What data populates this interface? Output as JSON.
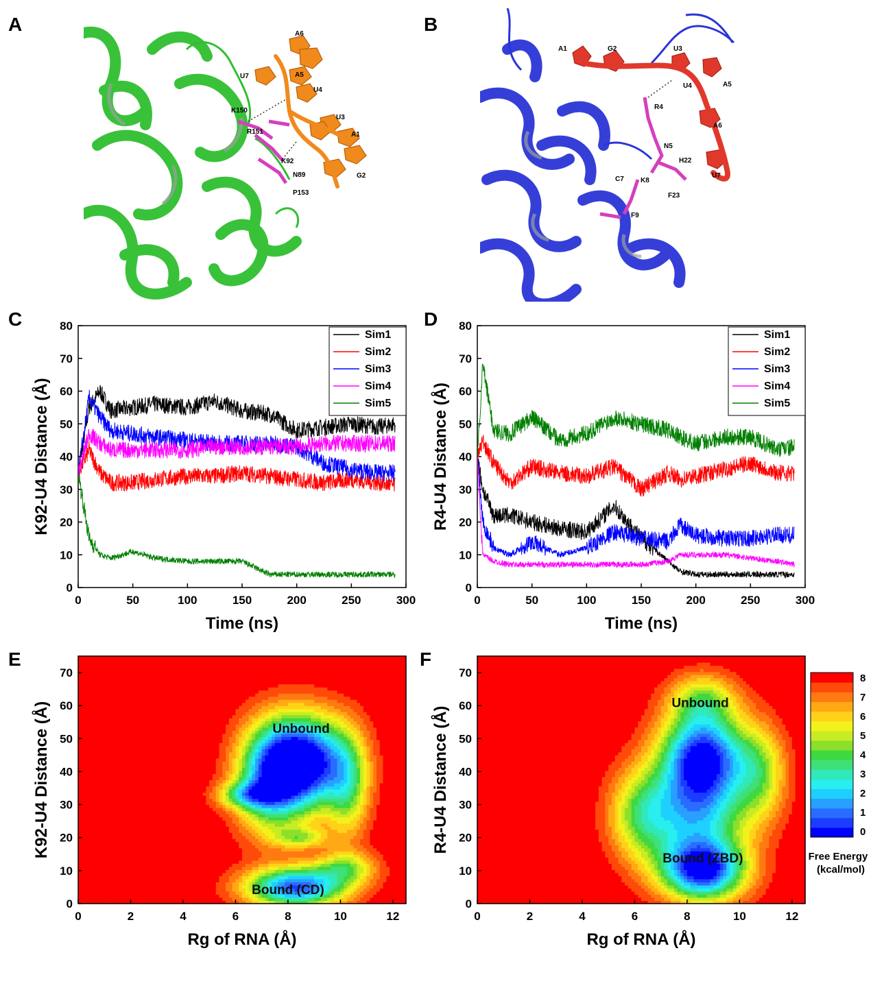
{
  "panel_letters": {
    "A": "A",
    "B": "B",
    "C": "C",
    "D": "D",
    "E": "E",
    "F": "F"
  },
  "structure_a": {
    "protein_color": "#2fbf2f",
    "rna_color": "#f08a1c",
    "residue_color": "#d63fbd",
    "labels": [
      "A6",
      "U7",
      "A5",
      "U4",
      "K150",
      "U3",
      "R151",
      "A1",
      "K92",
      "G2",
      "N89",
      "P153"
    ]
  },
  "structure_b": {
    "protein_color": "#2b35d6",
    "rna_color": "#e0392c",
    "residue_color": "#d63fbd",
    "labels": [
      "A1",
      "G2",
      "U3",
      "U4",
      "A5",
      "R4",
      "A6",
      "N5",
      "H22",
      "U7",
      "C7",
      "K8",
      "F23",
      "F9"
    ]
  },
  "chart_data": [
    {
      "type": "line",
      "panel": "C",
      "xlabel": "Time (ns)",
      "ylabel": "K92-U4 Distance (Å)",
      "xlim": [
        0,
        300
      ],
      "ylim": [
        0,
        80
      ],
      "xticks": [
        "0",
        "50",
        "100",
        "150",
        "200",
        "250",
        "300"
      ],
      "yticks": [
        "0",
        "10",
        "20",
        "30",
        "40",
        "50",
        "60",
        "70",
        "80"
      ],
      "legend": "top-right",
      "x": [
        0,
        10,
        20,
        30,
        50,
        70,
        100,
        125,
        150,
        175,
        200,
        225,
        250,
        275,
        290
      ],
      "series": [
        {
          "name": "Sim1",
          "color": "#000000",
          "values": [
            35,
            55,
            60,
            54,
            55,
            56,
            55,
            57,
            54,
            53,
            48,
            49,
            50,
            49,
            50
          ]
        },
        {
          "name": "Sim2",
          "color": "#ff0000",
          "values": [
            35,
            42,
            35,
            32,
            32,
            33,
            34,
            34,
            35,
            34,
            33,
            32,
            33,
            32,
            31
          ]
        },
        {
          "name": "Sim3",
          "color": "#0000ff",
          "values": [
            35,
            58,
            52,
            48,
            47,
            46,
            45,
            44,
            44,
            44,
            43,
            38,
            36,
            35,
            35
          ]
        },
        {
          "name": "Sim4",
          "color": "#ff00ff",
          "values": [
            35,
            47,
            44,
            42,
            42,
            42,
            42,
            43,
            43,
            43,
            43,
            44,
            44,
            44,
            44
          ]
        },
        {
          "name": "Sim5",
          "color": "#007f00",
          "values": [
            35,
            15,
            10,
            9,
            11,
            9,
            8,
            8,
            8,
            4,
            4,
            4,
            4,
            4,
            4
          ]
        }
      ]
    },
    {
      "type": "line",
      "panel": "D",
      "xlabel": "Time (ns)",
      "ylabel": "R4-U4 Distance (Å)",
      "xlim": [
        0,
        300
      ],
      "ylim": [
        0,
        80
      ],
      "xticks": [
        "0",
        "50",
        "100",
        "150",
        "200",
        "250",
        "300"
      ],
      "yticks": [
        "0",
        "10",
        "20",
        "30",
        "40",
        "50",
        "60",
        "70",
        "80"
      ],
      "legend": "top-right",
      "x": [
        0,
        5,
        15,
        30,
        50,
        75,
        100,
        125,
        150,
        175,
        185,
        200,
        225,
        250,
        275,
        290
      ],
      "series": [
        {
          "name": "Sim1",
          "color": "#000000",
          "values": [
            40,
            30,
            22,
            22,
            20,
            18,
            17,
            25,
            15,
            8,
            5,
            4,
            4,
            4,
            4,
            4
          ]
        },
        {
          "name": "Sim2",
          "color": "#ff0000",
          "values": [
            40,
            45,
            38,
            32,
            37,
            35,
            34,
            37,
            30,
            35,
            33,
            34,
            36,
            38,
            35,
            35
          ]
        },
        {
          "name": "Sim3",
          "color": "#0000ff",
          "values": [
            40,
            20,
            12,
            10,
            14,
            10,
            12,
            17,
            15,
            14,
            19,
            16,
            15,
            15,
            16,
            16
          ]
        },
        {
          "name": "Sim4",
          "color": "#ff00ff",
          "values": [
            40,
            10,
            8,
            7,
            7,
            7,
            7,
            7,
            7,
            8,
            10,
            10,
            10,
            9,
            8,
            7
          ]
        },
        {
          "name": "Sim5",
          "color": "#007f00",
          "values": [
            40,
            68,
            48,
            47,
            52,
            45,
            47,
            52,
            50,
            48,
            46,
            44,
            46,
            46,
            42,
            43
          ]
        }
      ]
    },
    {
      "type": "heatmap",
      "panel": "E",
      "xlabel": "Rg of RNA (Å)",
      "ylabel": "K92-U4 Distance (Å)",
      "xlim": [
        0,
        12.5
      ],
      "ylim": [
        0,
        75
      ],
      "xticks": [
        "0",
        "2",
        "4",
        "6",
        "8",
        "10",
        "12"
      ],
      "yticks": [
        "0",
        "10",
        "20",
        "30",
        "40",
        "50",
        "60",
        "70"
      ],
      "annotations": [
        "Unbound",
        "Bound (CD)"
      ],
      "minima": [
        {
          "x": 8.5,
          "y": 43,
          "label": "Unbound"
        },
        {
          "x": 8.0,
          "y": 5,
          "label": "Bound (CD)"
        }
      ]
    },
    {
      "type": "heatmap",
      "panel": "F",
      "xlabel": "Rg of RNA (Å)",
      "ylabel": "R4-U4 Distance (Å)",
      "xlim": [
        0,
        12.5
      ],
      "ylim": [
        0,
        75
      ],
      "xticks": [
        "0",
        "2",
        "4",
        "6",
        "8",
        "10",
        "12"
      ],
      "yticks": [
        "0",
        "10",
        "20",
        "30",
        "40",
        "50",
        "60",
        "70"
      ],
      "annotations": [
        "Unbound",
        "Bound (ZBD)"
      ],
      "minima": [
        {
          "x": 8.5,
          "y": 45,
          "label": "Unbound"
        },
        {
          "x": 8.6,
          "y": 10,
          "label": "Bound (ZBD)"
        }
      ]
    }
  ],
  "colorbar": {
    "title_line1": "Free Energy",
    "title_line2": "(kcal/mol)",
    "ticks": [
      "8",
      "7",
      "6",
      "5",
      "4",
      "3",
      "2",
      "1",
      "0"
    ],
    "colors": [
      "#0000ff",
      "#1a3dff",
      "#2a6cff",
      "#28a0ff",
      "#1ed0ff",
      "#28eeee",
      "#30e8b8",
      "#3ee07a",
      "#40d840",
      "#8ae02a",
      "#c8ec24",
      "#f2f21a",
      "#ffd21a",
      "#ffaa14",
      "#ff7a10",
      "#ff4a0a",
      "#ff0000"
    ]
  }
}
